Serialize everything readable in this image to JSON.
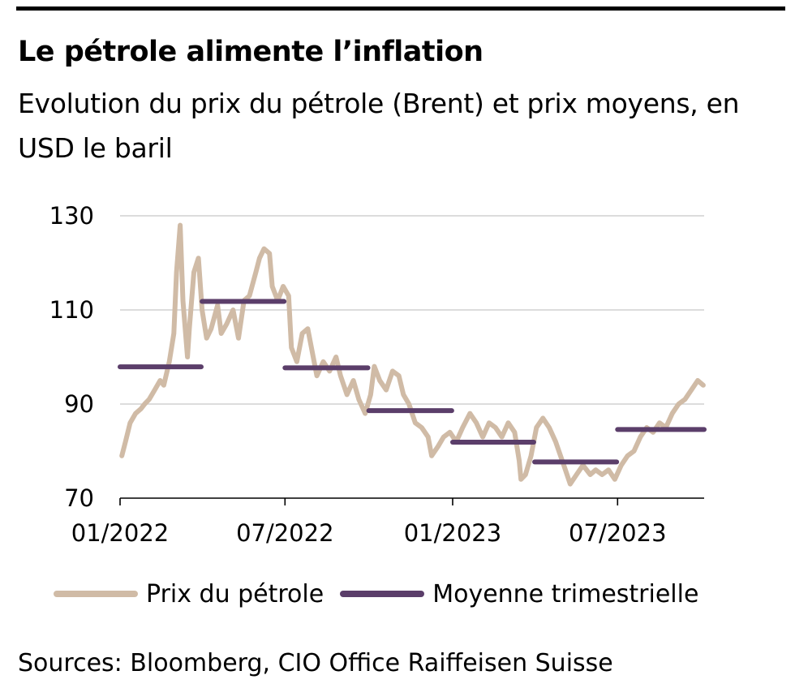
{
  "colors": {
    "oil": "#d0bba6",
    "avg": "#5b3e6a",
    "grid": "#c8c8c8",
    "axis": "#000000"
  },
  "chart_data": {
    "type": "line",
    "title": "Le pétrole alimente l’inflation",
    "subtitle": "Evolution du prix du pétrole (Brent) et prix moyens, en USD le baril",
    "ylim": [
      70,
      130
    ],
    "yticks": [
      70,
      90,
      110,
      130
    ],
    "ytick_labels": [
      "70",
      "90",
      "110",
      "130"
    ],
    "xlim": [
      "2022-01-01",
      "2023-10-04"
    ],
    "xticks": [
      "2022-01-01",
      "2022-07-01",
      "2023-01-01",
      "2023-07-01"
    ],
    "xtick_labels": [
      "01/2022",
      "07/2022",
      "01/2023",
      "07/2023"
    ],
    "grid": true,
    "legend_position": "bottom",
    "series": [
      {
        "name": "Prix du pétrole",
        "color": "#d0bba6",
        "x": [
          "2022-01-03",
          "2022-01-07",
          "2022-01-12",
          "2022-01-18",
          "2022-01-24",
          "2022-01-28",
          "2022-02-02",
          "2022-02-08",
          "2022-02-14",
          "2022-02-18",
          "2022-02-24",
          "2022-03-01",
          "2022-03-04",
          "2022-03-08",
          "2022-03-11",
          "2022-03-16",
          "2022-03-18",
          "2022-03-23",
          "2022-03-28",
          "2022-04-01",
          "2022-04-06",
          "2022-04-11",
          "2022-04-18",
          "2022-04-22",
          "2022-04-28",
          "2022-05-05",
          "2022-05-11",
          "2022-05-17",
          "2022-05-23",
          "2022-05-30",
          "2022-06-03",
          "2022-06-08",
          "2022-06-14",
          "2022-06-17",
          "2022-06-23",
          "2022-06-29",
          "2022-07-05",
          "2022-07-08",
          "2022-07-14",
          "2022-07-20",
          "2022-07-26",
          "2022-08-01",
          "2022-08-05",
          "2022-08-12",
          "2022-08-19",
          "2022-08-26",
          "2022-08-31",
          "2022-09-07",
          "2022-09-14",
          "2022-09-20",
          "2022-09-27",
          "2022-10-03",
          "2022-10-07",
          "2022-10-13",
          "2022-10-20",
          "2022-10-27",
          "2022-11-03",
          "2022-11-08",
          "2022-11-14",
          "2022-11-21",
          "2022-11-28",
          "2022-12-05",
          "2022-12-09",
          "2022-12-16",
          "2022-12-22",
          "2022-12-29",
          "2023-01-05",
          "2023-01-12",
          "2023-01-20",
          "2023-01-27",
          "2023-02-03",
          "2023-02-10",
          "2023-02-17",
          "2023-02-24",
          "2023-03-03",
          "2023-03-10",
          "2023-03-15",
          "2023-03-17",
          "2023-03-22",
          "2023-03-28",
          "2023-04-03",
          "2023-04-10",
          "2023-04-17",
          "2023-04-24",
          "2023-05-03",
          "2023-05-10",
          "2023-05-17",
          "2023-05-24",
          "2023-06-01",
          "2023-06-07",
          "2023-06-14",
          "2023-06-21",
          "2023-06-28",
          "2023-07-05",
          "2023-07-12",
          "2023-07-19",
          "2023-07-26",
          "2023-08-02",
          "2023-08-09",
          "2023-08-16",
          "2023-08-23",
          "2023-08-30",
          "2023-09-06",
          "2023-09-13",
          "2023-09-20",
          "2023-09-27",
          "2023-10-03"
        ],
        "values": [
          79,
          82,
          86,
          88,
          89,
          90,
          91,
          93,
          95,
          94,
          99,
          105,
          118,
          128,
          112,
          100,
          106,
          118,
          121,
          110,
          104,
          106,
          111,
          105,
          107,
          110,
          104,
          112,
          113,
          118,
          121,
          123,
          122,
          115,
          112,
          115,
          113,
          102,
          99,
          105,
          106,
          100,
          96,
          99,
          97,
          100,
          96,
          92,
          95,
          91,
          88,
          92,
          98,
          95,
          93,
          97,
          96,
          92,
          90,
          86,
          85,
          83,
          79,
          81,
          83,
          84,
          82,
          85,
          88,
          86,
          83,
          86,
          85,
          83,
          86,
          84,
          78,
          74,
          75,
          79,
          85,
          87,
          85,
          82,
          77,
          73,
          75,
          77,
          75,
          76,
          75,
          76,
          74,
          77,
          79,
          80,
          83,
          85,
          84,
          86,
          85,
          88,
          90,
          91,
          93,
          95,
          94
        ]
      },
      {
        "name": "Moyenne trimestrielle",
        "color": "#5b3e6a",
        "segments": [
          {
            "start": "2022-01-01",
            "end": "2022-03-31",
            "value": 97.9
          },
          {
            "start": "2022-04-01",
            "end": "2022-06-30",
            "value": 111.8
          },
          {
            "start": "2022-07-01",
            "end": "2022-09-30",
            "value": 97.7
          },
          {
            "start": "2022-10-01",
            "end": "2022-12-31",
            "value": 88.6
          },
          {
            "start": "2023-01-01",
            "end": "2023-03-31",
            "value": 81.9
          },
          {
            "start": "2023-04-01",
            "end": "2023-06-30",
            "value": 77.7
          },
          {
            "start": "2023-07-01",
            "end": "2023-10-04",
            "value": 84.6
          }
        ]
      }
    ]
  },
  "legend": {
    "oil_label": "Prix du pétrole",
    "avg_label": "Moyenne trimestrielle"
  },
  "source": "Sources: Bloomberg, CIO Office Raiffeisen Suisse"
}
